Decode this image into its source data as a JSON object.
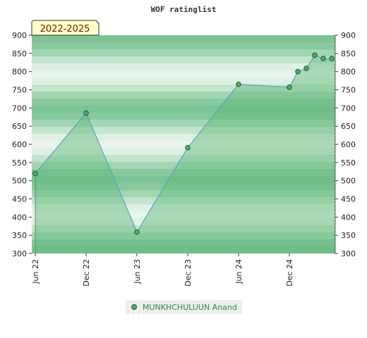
{
  "chart_data": {
    "type": "area",
    "title": "WOF ratinglist",
    "badge": "2022-2025",
    "ylim": [
      300,
      900
    ],
    "yticks": [
      300,
      350,
      400,
      450,
      500,
      550,
      600,
      650,
      700,
      750,
      800,
      850,
      900
    ],
    "xlim": [
      "2022-06",
      "2025-06"
    ],
    "xtick_labels": [
      {
        "label": "Jun 22",
        "date": "2022-06"
      },
      {
        "label": "Dec 22",
        "date": "2022-12"
      },
      {
        "label": "Jun 23",
        "date": "2023-06"
      },
      {
        "label": "Dec 23",
        "date": "2023-12"
      },
      {
        "label": "Jun 24",
        "date": "2024-06"
      },
      {
        "label": "Dec 24",
        "date": "2024-12"
      }
    ],
    "series": [
      {
        "name": "MUNKHCHULUUN Anand",
        "points": [
          {
            "x": "2022-06",
            "y": 520
          },
          {
            "x": "2022-12",
            "y": 686
          },
          {
            "x": "2023-06",
            "y": 359
          },
          {
            "x": "2023-12",
            "y": 591
          },
          {
            "x": "2024-06",
            "y": 765
          },
          {
            "x": "2024-12",
            "y": 757
          },
          {
            "x": "2025-01",
            "y": 800
          },
          {
            "x": "2025-02",
            "y": 809
          },
          {
            "x": "2025-03",
            "y": 845
          },
          {
            "x": "2025-04",
            "y": 836
          },
          {
            "x": "2025-05",
            "y": 836
          }
        ]
      }
    ],
    "colors": {
      "band_dark": "#7cc493",
      "band_light": "#f5faf6",
      "line": "#5ba3c6",
      "fill": "#5fb877",
      "marker": "#4caf68",
      "marker_edge": "#1d5a2c",
      "badge_bg": "#ffffc8"
    }
  }
}
